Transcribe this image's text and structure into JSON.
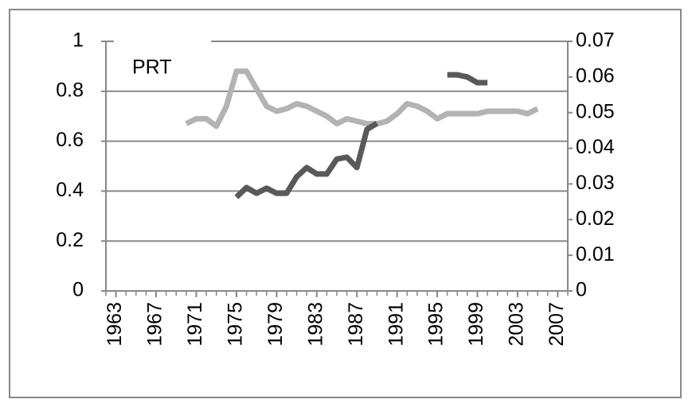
{
  "chart_data": {
    "type": "line",
    "title": "PRT",
    "x": [
      1970,
      1971,
      1972,
      1973,
      1974,
      1975,
      1976,
      1977,
      1978,
      1979,
      1980,
      1981,
      1982,
      1983,
      1984,
      1985,
      1986,
      1987,
      1988,
      1989,
      1990,
      1991,
      1992,
      1993,
      1994,
      1995,
      1996,
      1997,
      1998,
      1999,
      2000,
      2001,
      2002,
      2003,
      2004,
      2005
    ],
    "series": [
      {
        "color": "#b3b3b3",
        "axis": "y",
        "values": [
          0.67,
          0.69,
          0.69,
          0.66,
          0.74,
          0.88,
          0.88,
          0.81,
          0.74,
          0.72,
          0.73,
          0.75,
          0.74,
          0.72,
          0.7,
          0.67,
          0.69,
          0.68,
          0.67,
          0.67,
          0.68,
          0.71,
          0.75,
          0.74,
          0.72,
          0.69,
          0.71,
          0.71,
          0.71,
          0.71,
          0.72,
          0.72,
          0.72,
          0.72,
          0.71,
          0.73
        ]
      },
      {
        "color": "#595959",
        "axis": "y2",
        "values": [
          null,
          null,
          null,
          null,
          null,
          0.0263,
          0.029,
          0.0274,
          0.0288,
          0.0274,
          0.0274,
          0.032,
          0.0346,
          0.0328,
          0.0328,
          0.037,
          0.0375,
          0.0346,
          0.0453,
          0.047,
          null,
          null,
          null,
          null,
          null,
          null,
          0.0606,
          0.0606,
          0.06,
          0.0584,
          0.0584,
          null,
          null,
          null,
          null,
          null
        ]
      }
    ],
    "xlim": [
      1962,
      2008
    ],
    "xticks": [
      1963,
      1967,
      1971,
      1975,
      1979,
      1983,
      1987,
      1991,
      1995,
      1999,
      2003,
      2007
    ],
    "ylim": [
      0,
      1
    ],
    "yticks": [
      0,
      {
        "value": 0.2,
        "label": "0.2"
      },
      {
        "value": 0.4,
        "label": "0.4"
      },
      {
        "value": 0.6,
        "label": "0.6"
      },
      {
        "value": 0.8,
        "label": "0.8"
      },
      1
    ],
    "y2lim": [
      0,
      0.07
    ],
    "y2ticks": [
      0,
      0.01,
      0.02,
      0.03,
      0.04,
      0.05,
      0.06,
      0.07
    ],
    "grid": true
  }
}
